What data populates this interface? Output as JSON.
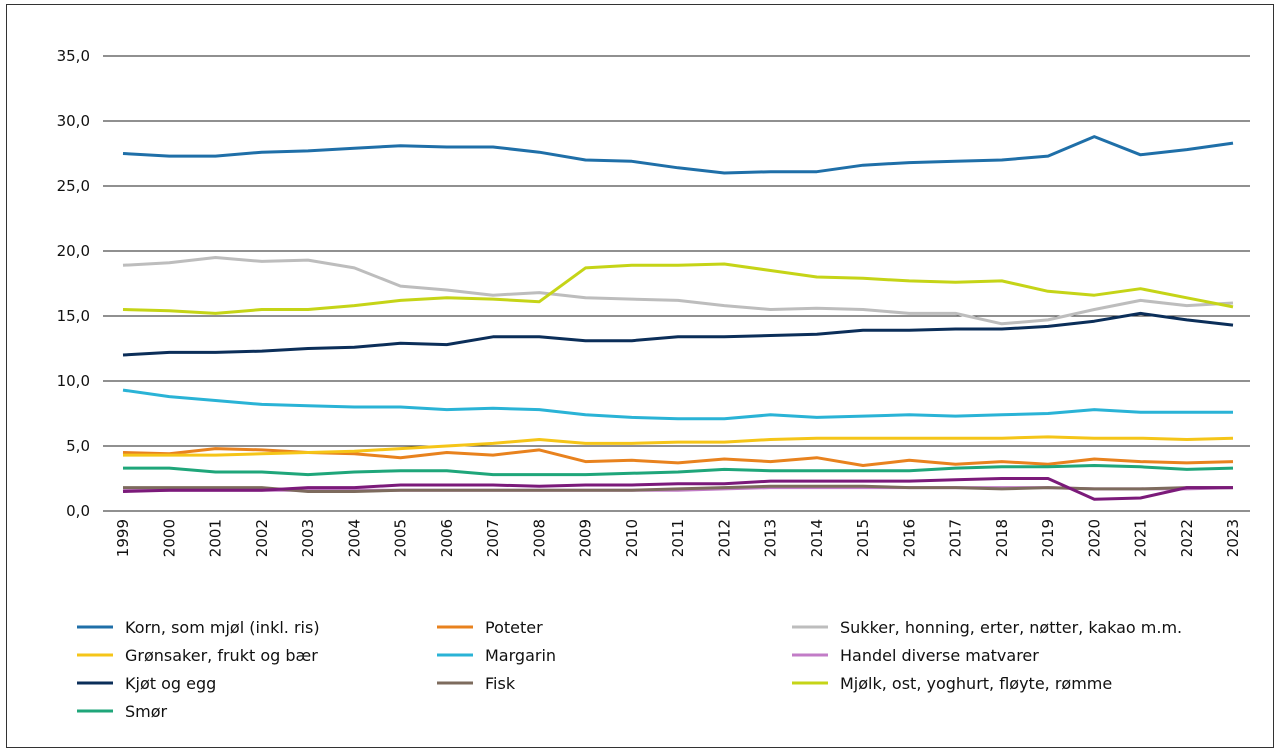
{
  "chart_data": {
    "type": "line",
    "title": "",
    "xlabel": "",
    "ylabel": "",
    "ylim": [
      0,
      35
    ],
    "y_ticks": [
      "0,0",
      "5,0",
      "10,0",
      "15,0",
      "20,0",
      "25,0",
      "30,0",
      "35,0"
    ],
    "grid": "horizontal",
    "legend_position": "bottom",
    "categories": [
      "1999",
      "2000",
      "2001",
      "2002",
      "2003",
      "2004",
      "2005",
      "2006",
      "2007",
      "2008",
      "2009",
      "2010",
      "2011",
      "2012",
      "2013",
      "2014",
      "2015",
      "2016",
      "2017",
      "2018",
      "2019",
      "2020",
      "2021",
      "2022",
      "2023"
    ],
    "series": [
      {
        "name": "Korn, som mjøl (inkl. ris)",
        "color": "#1f6fa8",
        "values": [
          27.5,
          27.3,
          27.3,
          27.6,
          27.7,
          27.9,
          28.1,
          28.0,
          28.0,
          27.6,
          27.0,
          26.9,
          26.4,
          26.0,
          26.1,
          26.1,
          26.6,
          26.8,
          26.9,
          27.0,
          27.3,
          28.8,
          27.4,
          27.8,
          28.3
        ]
      },
      {
        "name": "Poteter",
        "color": "#e8821e",
        "values": [
          4.5,
          4.4,
          4.8,
          4.7,
          4.5,
          4.4,
          4.1,
          4.5,
          4.3,
          4.7,
          3.8,
          3.9,
          3.7,
          4.0,
          3.8,
          4.1,
          3.5,
          3.9,
          3.6,
          3.8,
          3.6,
          4.0,
          3.8,
          3.7,
          3.8
        ]
      },
      {
        "name": "Sukker, honning, erter, nøtter, kakao m.m.",
        "color": "#bdbdbd",
        "values": [
          18.9,
          19.1,
          19.5,
          19.2,
          19.3,
          18.7,
          17.3,
          17.0,
          16.6,
          16.8,
          16.4,
          16.3,
          16.2,
          15.8,
          15.5,
          15.6,
          15.5,
          15.2,
          15.2,
          14.4,
          14.7,
          15.5,
          16.2,
          15.8,
          16.0
        ]
      },
      {
        "name": "Grønsaker, frukt og bær",
        "color": "#f5c518",
        "values": [
          4.3,
          4.3,
          4.3,
          4.4,
          4.5,
          4.6,
          4.8,
          5.0,
          5.2,
          5.5,
          5.2,
          5.2,
          5.3,
          5.3,
          5.5,
          5.6,
          5.6,
          5.6,
          5.6,
          5.6,
          5.7,
          5.6,
          5.6,
          5.5,
          5.6
        ]
      },
      {
        "name": "Margarin",
        "color": "#2ab3d6",
        "values": [
          9.3,
          8.8,
          8.5,
          8.2,
          8.1,
          8.0,
          8.0,
          7.8,
          7.9,
          7.8,
          7.4,
          7.2,
          7.1,
          7.1,
          7.4,
          7.2,
          7.3,
          7.4,
          7.3,
          7.4,
          7.5,
          7.8,
          7.6,
          7.6,
          7.6
        ]
      },
      {
        "name": "Handel diverse matvarer",
        "color": "#c27cc7",
        "values": [
          1.6,
          1.6,
          1.6,
          1.6,
          1.6,
          1.6,
          1.6,
          1.6,
          1.6,
          1.6,
          1.6,
          1.6,
          1.6,
          1.7,
          1.8,
          1.8,
          1.8,
          1.8,
          1.8,
          1.8,
          1.8,
          1.7,
          1.7,
          1.7,
          1.8
        ]
      },
      {
        "name": "Kjøt og egg",
        "color": "#0b2e59",
        "values": [
          12.0,
          12.2,
          12.2,
          12.3,
          12.5,
          12.6,
          12.9,
          12.8,
          13.4,
          13.4,
          13.1,
          13.1,
          13.4,
          13.4,
          13.5,
          13.6,
          13.9,
          13.9,
          14.0,
          14.0,
          14.2,
          14.6,
          15.2,
          14.7,
          14.3
        ]
      },
      {
        "name": "Fisk",
        "color": "#7d6b5d",
        "values": [
          1.8,
          1.8,
          1.8,
          1.8,
          1.5,
          1.5,
          1.6,
          1.6,
          1.6,
          1.6,
          1.6,
          1.6,
          1.7,
          1.8,
          1.9,
          1.9,
          1.9,
          1.8,
          1.8,
          1.7,
          1.8,
          1.7,
          1.7,
          1.8,
          1.8
        ]
      },
      {
        "name": "Mjølk, ost, yoghurt, fløyte, rømme",
        "color": "#c5d417",
        "values": [
          15.5,
          15.4,
          15.2,
          15.5,
          15.5,
          15.8,
          16.2,
          16.4,
          16.3,
          16.1,
          18.7,
          18.9,
          18.9,
          19.0,
          18.5,
          18.0,
          17.9,
          17.7,
          17.6,
          17.7,
          16.9,
          16.6,
          17.1,
          16.4,
          15.7
        ]
      },
      {
        "name": "Smør",
        "color": "#1fa67a",
        "values": [
          3.3,
          3.3,
          3.0,
          3.0,
          2.8,
          3.0,
          3.1,
          3.1,
          2.8,
          2.8,
          2.8,
          2.9,
          3.0,
          3.2,
          3.1,
          3.1,
          3.1,
          3.1,
          3.3,
          3.4,
          3.4,
          3.5,
          3.4,
          3.2,
          3.3
        ]
      },
      {
        "name": "",
        "color": "#7b1a7a",
        "values": [
          1.5,
          1.6,
          1.6,
          1.6,
          1.8,
          1.8,
          2.0,
          2.0,
          2.0,
          1.9,
          2.0,
          2.0,
          2.1,
          2.1,
          2.3,
          2.3,
          2.3,
          2.3,
          2.4,
          2.5,
          2.5,
          0.9,
          1.0,
          1.8,
          1.8
        ]
      }
    ]
  }
}
